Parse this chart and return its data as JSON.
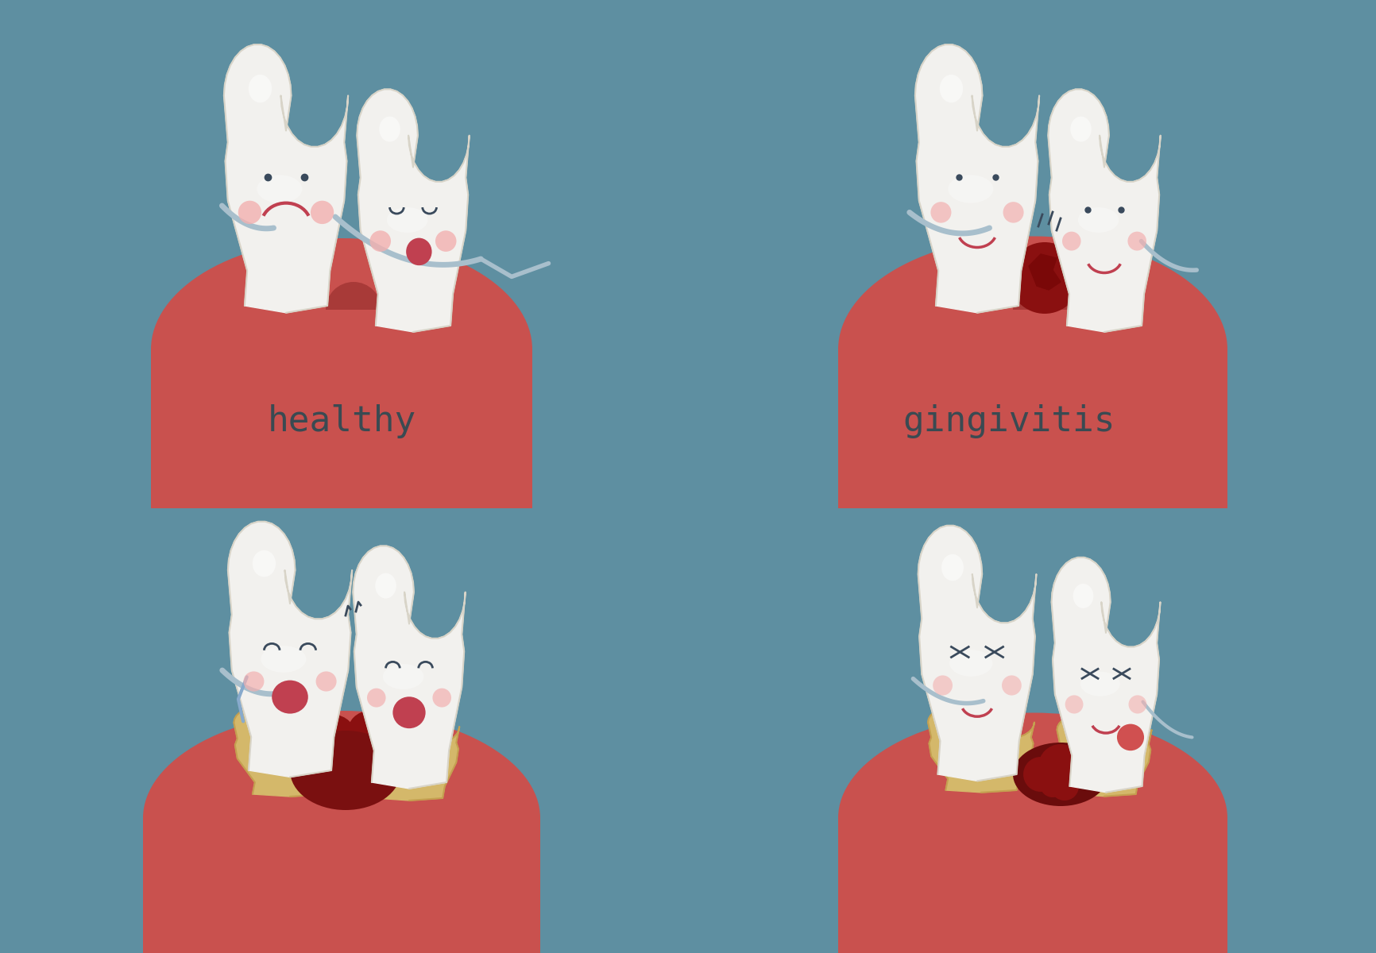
{
  "bg_color": "#5e8fa1",
  "gum_color": "#c9514e",
  "gum_dark": "#a83a38",
  "tooth_white": "#f2f1ee",
  "tooth_highlight": "#e8e6e0",
  "tooth_shadow": "#d8d4c8",
  "tooth_yellow": "#d4b86a",
  "tooth_yellow_dark": "#c4a050",
  "pink_cheek": "#f2b0b0",
  "dark_eye": "#3a4a5c",
  "floss_color": "#a8bfcc",
  "floss_dark": "#8aaabb",
  "blood_dark": "#7a1010",
  "blood_mid": "#9b1818",
  "label_healthy": "healthy",
  "label_gingivitis": "gingivitis",
  "label_color": "#3a4a52",
  "label_fontsize": 32
}
